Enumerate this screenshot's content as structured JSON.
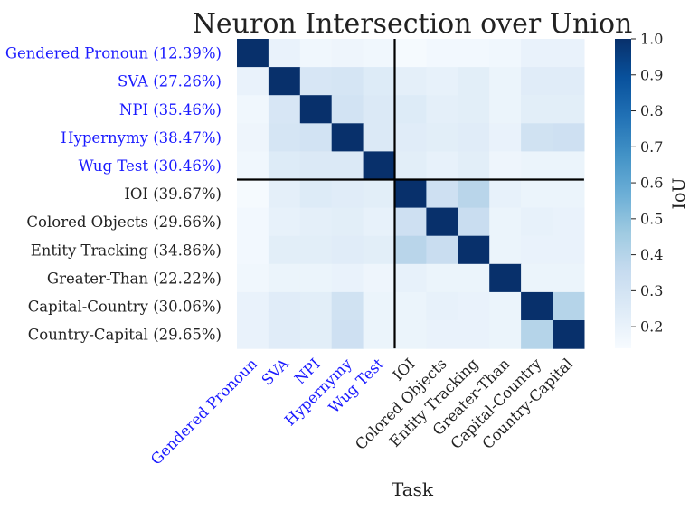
{
  "chart_data": {
    "type": "heatmap",
    "title": "Neuron Intersection over Union",
    "xlabel": "Task",
    "ylabel": "",
    "colorbar": {
      "label": "IoU",
      "range": [
        0.14,
        1.0
      ],
      "ticks": [
        "1.0",
        "0.9",
        "0.8",
        "0.7",
        "0.6",
        "0.5",
        "0.4",
        "0.3",
        "0.2"
      ],
      "colormap": "Blues"
    },
    "row_labels": [
      "Gendered Pronoun (12.39%)",
      "SVA (27.26%)",
      "NPI (35.46%)",
      "Hypernymy (38.47%)",
      "Wug Test (30.46%)",
      "IOI (39.67%)",
      "Colored Objects (29.66%)",
      "Entity Tracking (34.86%)",
      "Greater-Than (22.22%)",
      "Capital-Country (30.06%)",
      "Country-Capital (29.65%)"
    ],
    "col_labels": [
      "Gendered Pronoun",
      "SVA",
      "NPI",
      "Hypernymy",
      "Wug Test",
      "IOI",
      "Colored Objects",
      "Entity Tracking",
      "Greater-Than",
      "Capital-Country",
      "Country-Capital"
    ],
    "highlighted_count": 5,
    "highlight_color": "#1a1aff",
    "text_color": "#222222",
    "separator_index": 5,
    "values": [
      [
        1.0,
        0.2,
        0.17,
        0.18,
        0.17,
        0.15,
        0.16,
        0.16,
        0.17,
        0.2,
        0.2
      ],
      [
        0.2,
        1.0,
        0.28,
        0.29,
        0.25,
        0.22,
        0.21,
        0.23,
        0.19,
        0.24,
        0.24
      ],
      [
        0.17,
        0.28,
        1.0,
        0.3,
        0.26,
        0.25,
        0.22,
        0.23,
        0.19,
        0.23,
        0.23
      ],
      [
        0.18,
        0.29,
        0.3,
        1.0,
        0.26,
        0.24,
        0.23,
        0.24,
        0.2,
        0.31,
        0.32
      ],
      [
        0.17,
        0.25,
        0.26,
        0.26,
        1.0,
        0.23,
        0.21,
        0.23,
        0.18,
        0.19,
        0.19
      ],
      [
        0.15,
        0.22,
        0.25,
        0.24,
        0.23,
        1.0,
        0.32,
        0.39,
        0.21,
        0.19,
        0.19
      ],
      [
        0.16,
        0.21,
        0.22,
        0.23,
        0.21,
        0.32,
        1.0,
        0.34,
        0.19,
        0.21,
        0.2
      ],
      [
        0.16,
        0.23,
        0.23,
        0.24,
        0.23,
        0.39,
        0.34,
        1.0,
        0.19,
        0.2,
        0.2
      ],
      [
        0.17,
        0.19,
        0.19,
        0.2,
        0.18,
        0.21,
        0.19,
        0.19,
        1.0,
        0.19,
        0.19
      ],
      [
        0.2,
        0.24,
        0.23,
        0.31,
        0.19,
        0.19,
        0.21,
        0.2,
        0.19,
        1.0,
        0.4
      ],
      [
        0.2,
        0.24,
        0.23,
        0.32,
        0.19,
        0.19,
        0.2,
        0.2,
        0.19,
        0.4,
        1.0
      ]
    ]
  }
}
